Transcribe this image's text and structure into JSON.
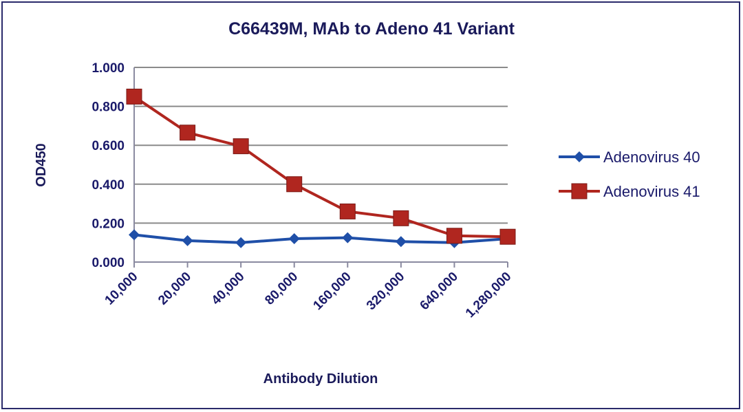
{
  "chart_data": {
    "type": "line",
    "title": "C66439M, MAb to Adeno 41 Variant",
    "xlabel": "Antibody Dilution",
    "ylabel": "OD450",
    "categories": [
      "10,000",
      "20,000",
      "40,000",
      "80,000",
      "160,000",
      "320,000",
      "640,000",
      "1,280,000"
    ],
    "yticks": [
      "0.000",
      "0.200",
      "0.400",
      "0.600",
      "0.800",
      "1.000"
    ],
    "ylim": [
      0,
      1.0
    ],
    "grid": true,
    "legend_position": "right",
    "series": [
      {
        "name": "Adenovirus 40",
        "color": "#1f4fa8",
        "marker": "diamond",
        "values": [
          0.14,
          0.11,
          0.1,
          0.12,
          0.125,
          0.105,
          0.1,
          0.12
        ]
      },
      {
        "name": "Adenovirus 41",
        "color": "#b0261f",
        "marker": "square",
        "values": [
          0.85,
          0.665,
          0.595,
          0.4,
          0.26,
          0.225,
          0.135,
          0.13
        ]
      }
    ]
  }
}
